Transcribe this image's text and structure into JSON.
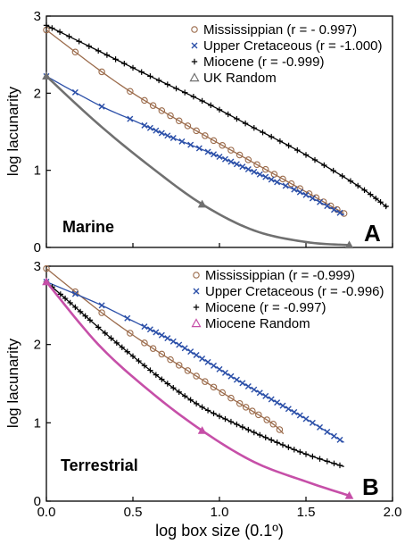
{
  "colors": {
    "mississippian": "#9b6b4b",
    "upper_cretaceous": "#2b4fa8",
    "miocene": "#000000",
    "uk_random": "#707070",
    "miocene_random": "#c64fa8"
  },
  "chart_data": [
    {
      "type": "line",
      "panel_letter": "A",
      "panel_name": "Marine",
      "xlabel": "",
      "ylabel": "log lacunarity",
      "xlim": [
        0,
        2.0
      ],
      "ylim": [
        0,
        3
      ],
      "yticks": [
        "0",
        "1",
        "2",
        "3"
      ],
      "x_tick_labels_shown": false,
      "legend_position": "top-right",
      "series": [
        {
          "name": "Mississippian (r = - 0.997)",
          "marker": "circle",
          "color_key": "mississippian",
          "x": [
            0.0,
            0.3,
            0.5,
            0.7,
            0.9,
            1.1,
            1.3,
            1.5,
            1.72
          ],
          "y": [
            2.82,
            2.31,
            2.0,
            1.73,
            1.47,
            1.22,
            0.97,
            0.72,
            0.44
          ]
        },
        {
          "name": "Upper Cretaceous (r = -1.000)",
          "marker": "x",
          "color_key": "upper_cretaceous",
          "x": [
            0.0,
            0.3,
            0.5,
            0.7,
            0.9,
            1.1,
            1.3,
            1.5,
            1.72
          ],
          "y": [
            2.22,
            1.85,
            1.65,
            1.45,
            1.27,
            1.08,
            0.88,
            0.68,
            0.42
          ]
        },
        {
          "name": "Miocene (r = -0.999)",
          "marker": "plus",
          "color_key": "miocene",
          "x": [
            0.0,
            0.3,
            0.6,
            0.9,
            1.2,
            1.5,
            1.8,
            1.97
          ],
          "y": [
            2.88,
            2.55,
            2.22,
            1.9,
            1.55,
            1.2,
            0.8,
            0.52
          ]
        },
        {
          "name": "UK Random",
          "marker": "triangle",
          "color_key": "uk_random",
          "x": [
            0.0,
            0.3,
            0.6,
            0.9,
            1.2,
            1.5,
            1.75
          ],
          "y": [
            2.22,
            1.6,
            1.05,
            0.56,
            0.22,
            0.07,
            0.03
          ]
        }
      ]
    },
    {
      "type": "line",
      "panel_letter": "B",
      "panel_name": "Terrestrial",
      "xlabel": "log box size (0.1º)",
      "ylabel": "log lacunarity",
      "xlim": [
        0,
        2.0
      ],
      "ylim": [
        0,
        3
      ],
      "xticks": [
        "0.0",
        "0.5",
        "1.0",
        "1.5",
        "2.0"
      ],
      "yticks": [
        "0",
        "1",
        "2",
        "3"
      ],
      "legend_position": "top-right",
      "series": [
        {
          "name": "Mississippian (r = -0.999)",
          "marker": "circle",
          "color_key": "mississippian",
          "x": [
            0.0,
            0.3,
            0.5,
            0.7,
            0.9,
            1.1,
            1.3,
            1.37
          ],
          "y": [
            2.97,
            2.44,
            2.12,
            1.83,
            1.55,
            1.27,
            1.0,
            0.86
          ]
        },
        {
          "name": "Upper Cretaceous (r = -0.996)",
          "marker": "x",
          "color_key": "upper_cretaceous",
          "x": [
            0.0,
            0.3,
            0.5,
            0.7,
            0.9,
            1.1,
            1.3,
            1.5,
            1.72
          ],
          "y": [
            2.8,
            2.52,
            2.3,
            2.08,
            1.82,
            1.55,
            1.3,
            1.05,
            0.75
          ]
        },
        {
          "name": "Miocene (r = -0.997)",
          "marker": "plus",
          "color_key": "miocene",
          "x": [
            0.0,
            0.3,
            0.5,
            0.7,
            0.9,
            1.1,
            1.3,
            1.5,
            1.72
          ],
          "y": [
            2.8,
            2.22,
            1.85,
            1.5,
            1.2,
            0.98,
            0.78,
            0.6,
            0.44
          ]
        },
        {
          "name": "Miocene Random",
          "marker": "triangle",
          "color_key": "miocene_random",
          "x": [
            0.0,
            0.3,
            0.6,
            0.9,
            1.2,
            1.5,
            1.75
          ],
          "y": [
            2.8,
            2.0,
            1.4,
            0.9,
            0.5,
            0.25,
            0.07
          ]
        }
      ]
    }
  ]
}
